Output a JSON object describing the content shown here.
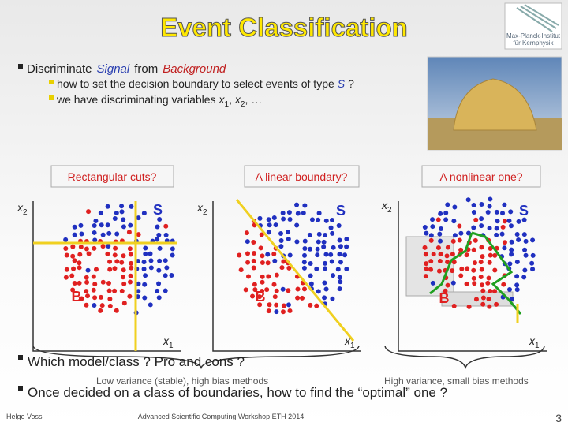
{
  "header": {
    "title": "Event Classification",
    "logo": [
      "Max-Planck-Institut",
      "für Kernphysik"
    ]
  },
  "intro": {
    "text": "Discriminate",
    "signal": "Signal",
    "from": "from",
    "background": "Background"
  },
  "sub_bullets": [
    {
      "text": "how to set the decision boundary to select events of type",
      "symbol": "S",
      "end": "?"
    },
    {
      "text": "we have discriminating variables",
      "var1": "x",
      "sub1": "1",
      "sep": ", ",
      "var2": "x",
      "sub2": "2",
      "end": ", …"
    }
  ],
  "panels": [
    {
      "label": "Rectangular cuts?",
      "y_var": "x",
      "y_sub": "2",
      "x_var": "x",
      "x_sub": "1",
      "signal": "S",
      "background": "B"
    },
    {
      "label": "A linear boundary?",
      "y_var": "x",
      "y_sub": "2",
      "x_var": "x",
      "x_sub": "1",
      "signal": "S",
      "background": "B"
    },
    {
      "label": "A nonlinear one?",
      "y_var": "x",
      "y_sub": "2",
      "x_var": "x",
      "x_sub": "1",
      "signal": "S",
      "background": "B"
    }
  ],
  "question": "Which model/class ? Pro and cons ?",
  "notes": [
    "Low variance (stable), high bias methods",
    "High variance, small bias methods"
  ],
  "conclusion": "Once decided on a class of boundaries, how to find the “optimal” one ?",
  "footer": {
    "author": "Helge Voss",
    "event": "Advanced Scientific Computing Workshop ETH 2014",
    "page": "3"
  }
}
